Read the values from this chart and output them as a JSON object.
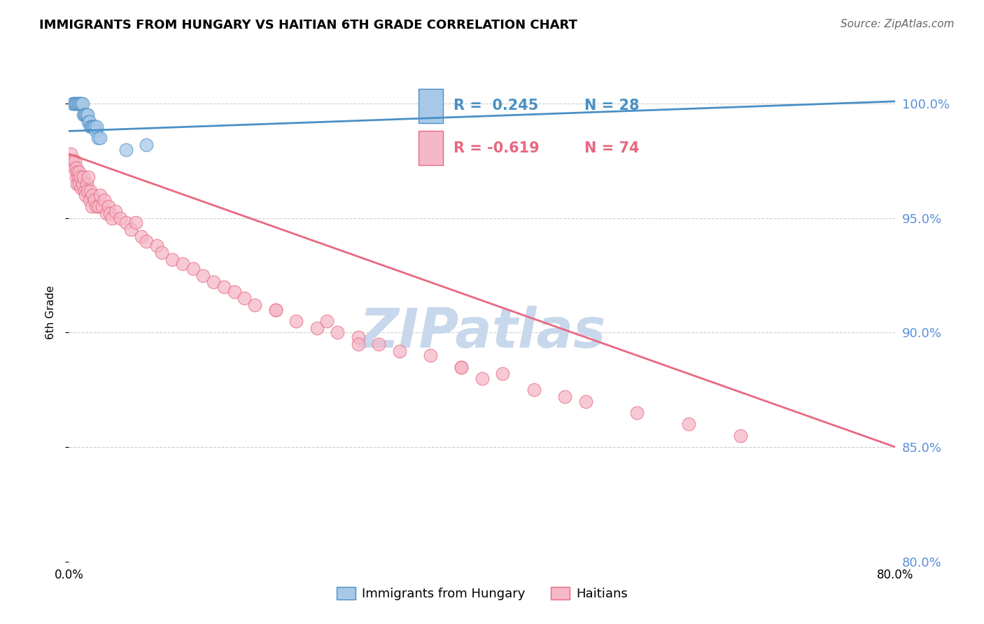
{
  "title": "IMMIGRANTS FROM HUNGARY VS HAITIAN 6TH GRADE CORRELATION CHART",
  "source": "Source: ZipAtlas.com",
  "ylabel": "6th Grade",
  "y_ticks": [
    80.0,
    85.0,
    90.0,
    95.0,
    100.0
  ],
  "y_tick_labels": [
    "80.0%",
    "85.0%",
    "90.0%",
    "95.0%",
    "100.0%"
  ],
  "x_range": [
    0.0,
    80.0
  ],
  "y_range": [
    80.0,
    101.8
  ],
  "legend_blue_r": "R =  0.245",
  "legend_blue_n": "N = 28",
  "legend_pink_r": "R = -0.619",
  "legend_pink_n": "N = 74",
  "legend_blue_label": "Immigrants from Hungary",
  "legend_pink_label": "Haitians",
  "blue_color": "#A8C8E8",
  "pink_color": "#F5B8C8",
  "blue_line_color": "#4A90C4",
  "pink_line_color": "#E86880",
  "watermark": "ZIPatlas",
  "watermark_color": "#C8D8EC",
  "blue_scatter_x": [
    0.3,
    0.5,
    0.6,
    0.7,
    0.8,
    0.9,
    1.0,
    1.1,
    1.2,
    1.3,
    1.4,
    1.5,
    1.6,
    1.7,
    1.8,
    1.9,
    2.0,
    2.1,
    2.2,
    2.3,
    2.4,
    2.5,
    2.6,
    2.7,
    2.8,
    3.0,
    5.5,
    7.5
  ],
  "blue_scatter_y": [
    100.0,
    100.0,
    100.0,
    100.0,
    100.0,
    100.0,
    100.0,
    100.0,
    100.0,
    100.0,
    99.5,
    99.5,
    99.5,
    99.5,
    99.5,
    99.2,
    99.2,
    99.0,
    99.0,
    99.0,
    99.0,
    99.0,
    98.8,
    99.0,
    98.5,
    98.5,
    98.0,
    98.2
  ],
  "pink_scatter_x": [
    0.2,
    0.3,
    0.4,
    0.5,
    0.6,
    0.7,
    0.7,
    0.8,
    0.8,
    0.9,
    1.0,
    1.0,
    1.1,
    1.2,
    1.3,
    1.4,
    1.5,
    1.6,
    1.7,
    1.8,
    1.9,
    2.0,
    2.1,
    2.2,
    2.3,
    2.5,
    2.7,
    2.9,
    3.0,
    3.2,
    3.4,
    3.6,
    3.8,
    4.0,
    4.2,
    4.5,
    5.0,
    5.5,
    6.0,
    6.5,
    7.0,
    7.5,
    8.5,
    9.0,
    10.0,
    11.0,
    12.0,
    13.0,
    14.0,
    15.0,
    16.0,
    17.0,
    18.0,
    20.0,
    22.0,
    24.0,
    26.0,
    28.0,
    30.0,
    35.0,
    38.0,
    40.0,
    45.0,
    50.0,
    55.0,
    60.0,
    65.0,
    20.0,
    25.0,
    28.0,
    32.0,
    38.0,
    42.0,
    48.0
  ],
  "pink_scatter_y": [
    97.8,
    97.5,
    97.5,
    97.2,
    97.5,
    97.2,
    96.8,
    97.0,
    96.5,
    96.8,
    96.5,
    97.0,
    96.8,
    96.3,
    96.5,
    96.8,
    96.2,
    96.0,
    96.5,
    96.2,
    96.8,
    95.8,
    96.2,
    95.5,
    96.0,
    95.8,
    95.5,
    95.5,
    96.0,
    95.5,
    95.8,
    95.2,
    95.5,
    95.2,
    95.0,
    95.3,
    95.0,
    94.8,
    94.5,
    94.8,
    94.2,
    94.0,
    93.8,
    93.5,
    93.2,
    93.0,
    92.8,
    92.5,
    92.2,
    92.0,
    91.8,
    91.5,
    91.2,
    91.0,
    90.5,
    90.2,
    90.0,
    89.8,
    89.5,
    89.0,
    88.5,
    88.0,
    87.5,
    87.0,
    86.5,
    86.0,
    85.5,
    91.0,
    90.5,
    89.5,
    89.2,
    88.5,
    88.2,
    87.2
  ],
  "blue_trend_x": [
    0.0,
    80.0
  ],
  "blue_trend_y": [
    98.8,
    100.1
  ],
  "pink_trend_x": [
    0.0,
    80.0
  ],
  "pink_trend_y": [
    97.8,
    85.0
  ]
}
